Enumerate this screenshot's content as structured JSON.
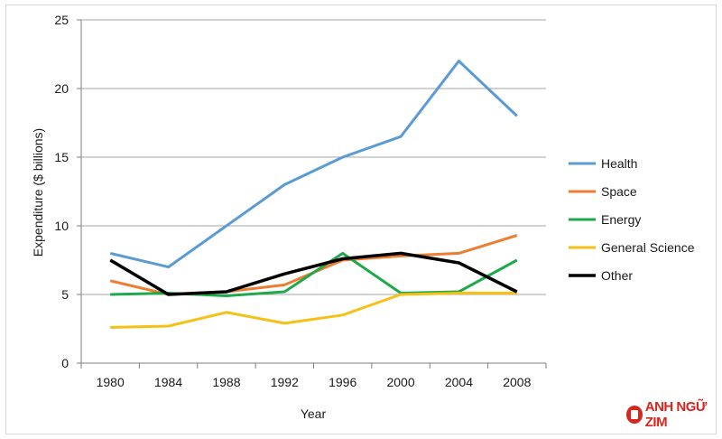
{
  "chart_data": {
    "type": "line",
    "title": "",
    "xlabel": "Year",
    "ylabel": "Expenditure  ($ billions)",
    "categories": [
      "1980",
      "1984",
      "1988",
      "1992",
      "1996",
      "2000",
      "2004",
      "2008"
    ],
    "ylim": [
      0,
      25
    ],
    "yticks": [
      0,
      5,
      10,
      15,
      20,
      25
    ],
    "grid": true,
    "legend_position": "right",
    "series": [
      {
        "name": "Health",
        "color": "#5b9bd5",
        "values": [
          8,
          7,
          10,
          13,
          15,
          16.5,
          22,
          18
        ]
      },
      {
        "name": "Space",
        "color": "#ed7d31",
        "values": [
          6,
          5,
          5.2,
          5.7,
          7.5,
          7.8,
          8,
          9.3
        ]
      },
      {
        "name": "Energy",
        "color": "#1ea94a",
        "values": [
          5,
          5.1,
          4.9,
          5.2,
          8,
          5.1,
          5.2,
          7.5
        ]
      },
      {
        "name": "General Science",
        "color": "#f5c116",
        "values": [
          2.6,
          2.7,
          3.7,
          2.9,
          3.5,
          5,
          5.1,
          5.1
        ]
      },
      {
        "name": "Other",
        "color": "#000000",
        "values": [
          7.5,
          5,
          5.2,
          6.5,
          7.6,
          8,
          7.3,
          5.2
        ]
      }
    ]
  },
  "logo": {
    "text": "ANH NGỮ ZIM"
  }
}
